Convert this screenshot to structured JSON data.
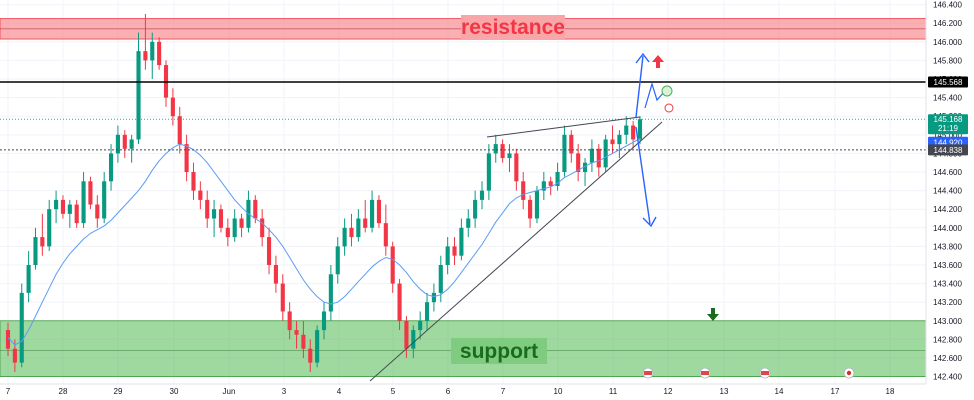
{
  "chart_data": {
    "type": "candlestick",
    "symbol_timeframe": "",
    "y_axis": {
      "ticks": [
        "146.400",
        "146.200",
        "146.000",
        "145.800",
        "145.600",
        "145.400",
        "145.200",
        "145.000",
        "144.800",
        "144.600",
        "144.400",
        "144.200",
        "144.000",
        "143.800",
        "143.600",
        "143.400",
        "143.200",
        "143.000",
        "142.800",
        "142.600",
        "142.400"
      ],
      "range": [
        142.32,
        146.45
      ]
    },
    "x_axis": {
      "ticks": [
        "7",
        "28",
        "29",
        "30",
        "Jun",
        "3",
        "4",
        "5",
        "6",
        "7",
        "10",
        "11",
        "12",
        "13",
        "14",
        "17",
        "18"
      ]
    },
    "zones": {
      "resistance": {
        "label": "resistance",
        "from": 146.03,
        "to": 146.25,
        "color": "#f77c80"
      },
      "support": {
        "label": "support",
        "from": 142.4,
        "to": 143.0,
        "color": "#5fbf60"
      }
    },
    "levels": {
      "key_level": {
        "value": 145.568,
        "label": "145.568",
        "color": "#000000"
      },
      "current": {
        "value": 145.168,
        "label": "145.168",
        "countdown": "21:19",
        "color": "#089981"
      },
      "bid": {
        "value": 144.92,
        "label": "144.920",
        "color": "#2962ff"
      },
      "dotted": {
        "value": 144.838,
        "label": "144.838",
        "color": "#434651"
      }
    },
    "candles": [
      [
        142.9,
        142.98,
        142.62,
        142.7
      ],
      [
        142.7,
        142.8,
        142.45,
        142.55
      ],
      [
        142.55,
        143.4,
        142.5,
        143.3
      ],
      [
        143.3,
        143.75,
        143.2,
        143.6
      ],
      [
        143.6,
        144.0,
        143.55,
        143.9
      ],
      [
        143.9,
        144.15,
        143.7,
        143.8
      ],
      [
        143.8,
        144.3,
        143.75,
        144.2
      ],
      [
        144.2,
        144.4,
        144.05,
        144.3
      ],
      [
        144.3,
        144.35,
        144.1,
        144.15
      ],
      [
        144.15,
        144.3,
        144.0,
        144.25
      ],
      [
        144.25,
        144.3,
        144.0,
        144.05
      ],
      [
        144.05,
        144.6,
        144.0,
        144.5
      ],
      [
        144.5,
        144.55,
        144.2,
        144.25
      ],
      [
        144.25,
        144.35,
        144.0,
        144.1
      ],
      [
        144.1,
        144.6,
        144.05,
        144.5
      ],
      [
        144.5,
        144.9,
        144.4,
        144.8
      ],
      [
        144.8,
        145.1,
        144.7,
        145.0
      ],
      [
        145.0,
        145.05,
        144.75,
        144.85
      ],
      [
        144.85,
        145.0,
        144.7,
        144.95
      ],
      [
        144.95,
        146.1,
        144.9,
        145.9
      ],
      [
        145.9,
        146.3,
        145.7,
        145.8
      ],
      [
        145.8,
        146.1,
        145.6,
        146.0
      ],
      [
        146.0,
        146.05,
        145.7,
        145.75
      ],
      [
        145.75,
        145.8,
        145.3,
        145.4
      ],
      [
        145.4,
        145.5,
        145.1,
        145.2
      ],
      [
        145.2,
        145.3,
        144.8,
        144.9
      ],
      [
        144.9,
        145.0,
        144.5,
        144.6
      ],
      [
        144.6,
        144.7,
        144.3,
        144.4
      ],
      [
        144.4,
        144.5,
        144.2,
        144.3
      ],
      [
        144.3,
        144.4,
        144.0,
        144.1
      ],
      [
        144.1,
        144.3,
        143.9,
        144.2
      ],
      [
        144.2,
        144.25,
        143.95,
        144.0
      ],
      [
        144.0,
        144.1,
        143.8,
        143.9
      ],
      [
        143.9,
        144.2,
        143.85,
        144.1
      ],
      [
        144.1,
        144.15,
        143.9,
        144.0
      ],
      [
        144.0,
        144.4,
        143.95,
        144.3
      ],
      [
        144.3,
        144.35,
        144.05,
        144.1
      ],
      [
        144.1,
        144.2,
        143.8,
        143.9
      ],
      [
        143.9,
        144.0,
        143.5,
        143.6
      ],
      [
        143.6,
        143.7,
        143.3,
        143.4
      ],
      [
        143.4,
        143.5,
        143.0,
        143.1
      ],
      [
        143.1,
        143.2,
        142.8,
        142.9
      ],
      [
        142.9,
        143.0,
        142.7,
        142.85
      ],
      [
        142.85,
        143.0,
        142.6,
        142.7
      ],
      [
        142.7,
        142.8,
        142.45,
        142.55
      ],
      [
        142.55,
        142.95,
        142.5,
        142.9
      ],
      [
        142.9,
        143.2,
        142.8,
        143.1
      ],
      [
        143.1,
        143.6,
        143.0,
        143.5
      ],
      [
        143.5,
        143.9,
        143.4,
        143.8
      ],
      [
        143.8,
        144.1,
        143.7,
        144.0
      ],
      [
        144.0,
        144.15,
        143.8,
        143.9
      ],
      [
        143.9,
        144.2,
        143.85,
        144.1
      ],
      [
        144.1,
        144.3,
        143.95,
        144.0
      ],
      [
        144.0,
        144.4,
        143.95,
        144.3
      ],
      [
        144.3,
        144.35,
        144.0,
        144.05
      ],
      [
        144.05,
        144.25,
        143.7,
        143.8
      ],
      [
        143.8,
        143.85,
        143.3,
        143.4
      ],
      [
        143.4,
        143.45,
        142.9,
        143.0
      ],
      [
        143.0,
        143.05,
        142.6,
        142.7
      ],
      [
        142.7,
        142.95,
        142.6,
        142.9
      ],
      [
        142.9,
        143.1,
        142.8,
        143.0
      ],
      [
        143.0,
        143.3,
        142.9,
        143.2
      ],
      [
        143.2,
        143.4,
        143.1,
        143.3
      ],
      [
        143.3,
        143.7,
        143.2,
        143.6
      ],
      [
        143.6,
        143.9,
        143.5,
        143.8
      ],
      [
        143.8,
        143.9,
        143.6,
        143.7
      ],
      [
        143.7,
        144.1,
        143.65,
        144.0
      ],
      [
        144.0,
        144.2,
        143.9,
        144.1
      ],
      [
        144.1,
        144.4,
        144.0,
        144.3
      ],
      [
        144.3,
        144.5,
        144.2,
        144.4
      ],
      [
        144.4,
        144.9,
        144.3,
        144.8
      ],
      [
        144.8,
        145.0,
        144.7,
        144.9
      ],
      [
        144.9,
        144.95,
        144.7,
        144.75
      ],
      [
        144.75,
        144.9,
        144.6,
        144.8
      ],
      [
        144.8,
        144.85,
        144.4,
        144.5
      ],
      [
        144.5,
        144.6,
        144.2,
        144.3
      ],
      [
        144.3,
        144.35,
        144.0,
        144.1
      ],
      [
        144.1,
        144.45,
        144.05,
        144.4
      ],
      [
        144.4,
        144.6,
        144.3,
        144.5
      ],
      [
        144.5,
        144.55,
        144.35,
        144.45
      ],
      [
        144.45,
        144.7,
        144.4,
        144.6
      ],
      [
        144.6,
        145.1,
        144.55,
        145.0
      ],
      [
        145.0,
        145.05,
        144.7,
        144.8
      ],
      [
        144.8,
        144.9,
        144.5,
        144.6
      ],
      [
        144.6,
        144.75,
        144.45,
        144.7
      ],
      [
        144.7,
        144.95,
        144.6,
        144.85
      ],
      [
        144.85,
        144.9,
        144.55,
        144.65
      ],
      [
        144.65,
        145.0,
        144.6,
        144.95
      ],
      [
        144.95,
        145.1,
        144.8,
        144.9
      ],
      [
        144.9,
        145.05,
        144.75,
        145.0
      ],
      [
        145.0,
        145.2,
        144.9,
        145.1
      ],
      [
        145.1,
        145.15,
        144.85,
        144.95
      ],
      [
        144.95,
        145.2,
        144.9,
        145.168
      ]
    ],
    "moving_average": [
      142.82,
      142.74,
      142.78,
      142.9,
      143.05,
      143.2,
      143.35,
      143.5,
      143.62,
      143.72,
      143.8,
      143.88,
      143.94,
      143.98,
      144.02,
      144.08,
      144.16,
      144.24,
      144.32,
      144.4,
      144.5,
      144.62,
      144.72,
      144.8,
      144.86,
      144.9,
      144.88,
      144.84,
      144.78,
      144.7,
      144.6,
      144.5,
      144.4,
      144.3,
      144.22,
      144.15,
      144.1,
      144.05,
      143.98,
      143.9,
      143.8,
      143.68,
      143.56,
      143.44,
      143.34,
      143.26,
      143.2,
      143.18,
      143.2,
      143.26,
      143.34,
      143.42,
      143.5,
      143.58,
      143.64,
      143.68,
      143.66,
      143.6,
      143.52,
      143.42,
      143.34,
      143.28,
      143.26,
      143.28,
      143.34,
      143.42,
      143.52,
      143.62,
      143.72,
      143.82,
      143.94,
      144.06,
      144.16,
      144.26,
      144.32,
      144.36,
      144.38,
      144.4,
      144.42,
      144.44,
      144.48,
      144.54,
      144.58,
      144.62,
      144.66,
      144.7,
      144.72,
      144.76,
      144.8,
      144.84,
      144.88,
      144.92,
      144.96
    ]
  }
}
